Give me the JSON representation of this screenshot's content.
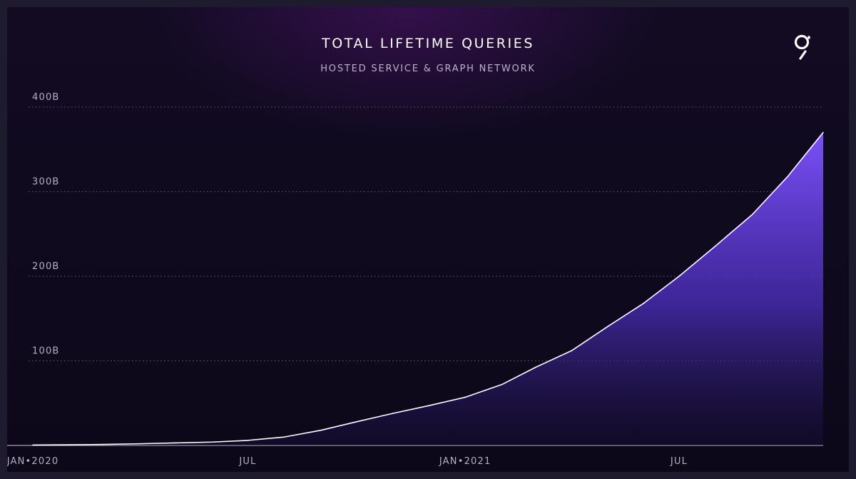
{
  "chart_data": {
    "type": "area",
    "title": "TOTAL LIFETIME QUERIES",
    "subtitle": "HOSTED SERVICE & GRAPH NETWORK",
    "y_tick_labels": [
      "100B",
      "200B",
      "300B",
      "400B"
    ],
    "y_tick_values": [
      100,
      200,
      300,
      400
    ],
    "x_tick_labels": [
      "JAN•2020",
      "JUL",
      "JAN•2021",
      "JUL"
    ],
    "x_tick_values": [
      "2020-01-01",
      "2020-07-01",
      "2021-01-01",
      "2021-07-01"
    ],
    "ylim": [
      0,
      400
    ],
    "xlim": [
      "2020-01-01",
      "2021-10-31"
    ],
    "y_unit": "billions of queries",
    "grid": "horizontal dotted",
    "series": [
      {
        "x": [
          "2020-01-01",
          "2020-02-01",
          "2020-03-01",
          "2020-04-01",
          "2020-05-01",
          "2020-06-01",
          "2020-07-01",
          "2020-08-01",
          "2020-09-01",
          "2020-10-01",
          "2020-11-01",
          "2020-12-01",
          "2021-01-01",
          "2021-02-01",
          "2021-03-01",
          "2021-04-01",
          "2021-05-01",
          "2021-06-01",
          "2021-07-01",
          "2021-08-01",
          "2021-09-01",
          "2021-10-01",
          "2021-10-31"
        ],
        "values": [
          0.5,
          0.8,
          1.2,
          2,
          3,
          4,
          6,
          10,
          18,
          28,
          38,
          47,
          57,
          72,
          92,
          112,
          140,
          168,
          200,
          236,
          273,
          318,
          370
        ]
      }
    ]
  },
  "colors": {
    "background": "#0f0a1f",
    "area_top": "#7b50f8",
    "line": "#ffffff",
    "grid": "#5f5a78"
  },
  "logo": {
    "icon": "the-graph-logo-icon"
  }
}
